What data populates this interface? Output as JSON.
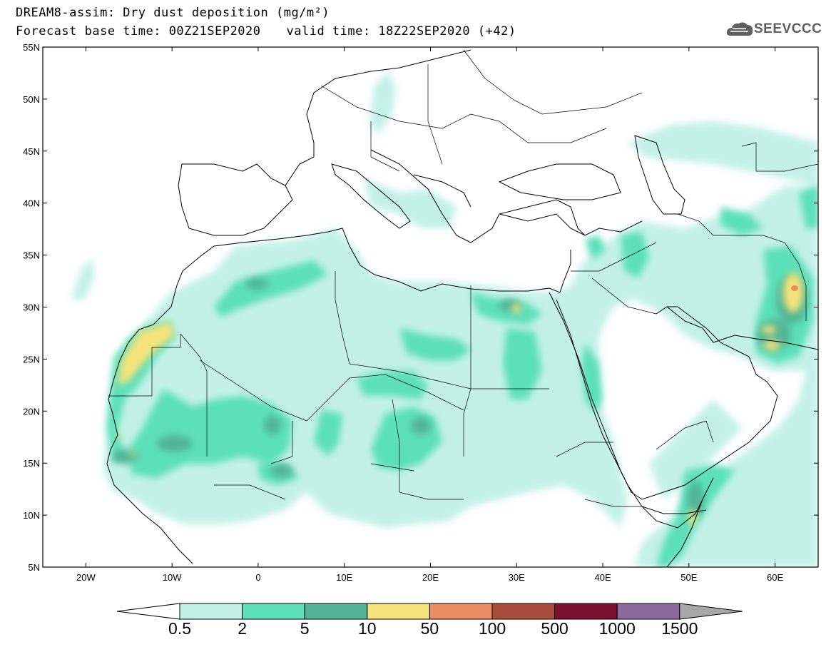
{
  "title": {
    "line1": "DREAM8-assim: Dry dust deposition (mg/m²)",
    "base_time": "Forecast base time: 00Z21SEP2020",
    "valid_time": "valid time: 18Z22SEP2020 (+42)"
  },
  "logo": {
    "text": "SEEVCCC",
    "icon": "cloud-icon"
  },
  "map": {
    "lon_range": [
      -25,
      65
    ],
    "lat_range": [
      5,
      55
    ],
    "lat_ticks": [
      {
        "value": 55,
        "label": "55N"
      },
      {
        "value": 50,
        "label": "50N"
      },
      {
        "value": 45,
        "label": "45N"
      },
      {
        "value": 40,
        "label": "40N"
      },
      {
        "value": 35,
        "label": "35N"
      },
      {
        "value": 30,
        "label": "30N"
      },
      {
        "value": 25,
        "label": "25N"
      },
      {
        "value": 20,
        "label": "20N"
      },
      {
        "value": 15,
        "label": "15N"
      },
      {
        "value": 10,
        "label": "10N"
      },
      {
        "value": 5,
        "label": "5N"
      }
    ],
    "lon_ticks": [
      {
        "value": -20,
        "label": "20W"
      },
      {
        "value": -10,
        "label": "10W"
      },
      {
        "value": 0,
        "label": "0"
      },
      {
        "value": 10,
        "label": "10E"
      },
      {
        "value": 20,
        "label": "20E"
      },
      {
        "value": 30,
        "label": "30E"
      },
      {
        "value": 40,
        "label": "40E"
      },
      {
        "value": 50,
        "label": "50E"
      },
      {
        "value": 60,
        "label": "60E"
      }
    ]
  },
  "colorbar": {
    "labels": [
      "0.5",
      "2",
      "5",
      "10",
      "50",
      "100",
      "500",
      "1000",
      "1500"
    ],
    "colors": [
      "#c3f1e8",
      "#5ce0b9",
      "#51b595",
      "#f5e37a",
      "#ec8c62",
      "#a84c3b",
      "#7a0f2e",
      "#8b6b9e"
    ],
    "under_color": "#ffffff",
    "over_color": "#a8a8a8"
  }
}
